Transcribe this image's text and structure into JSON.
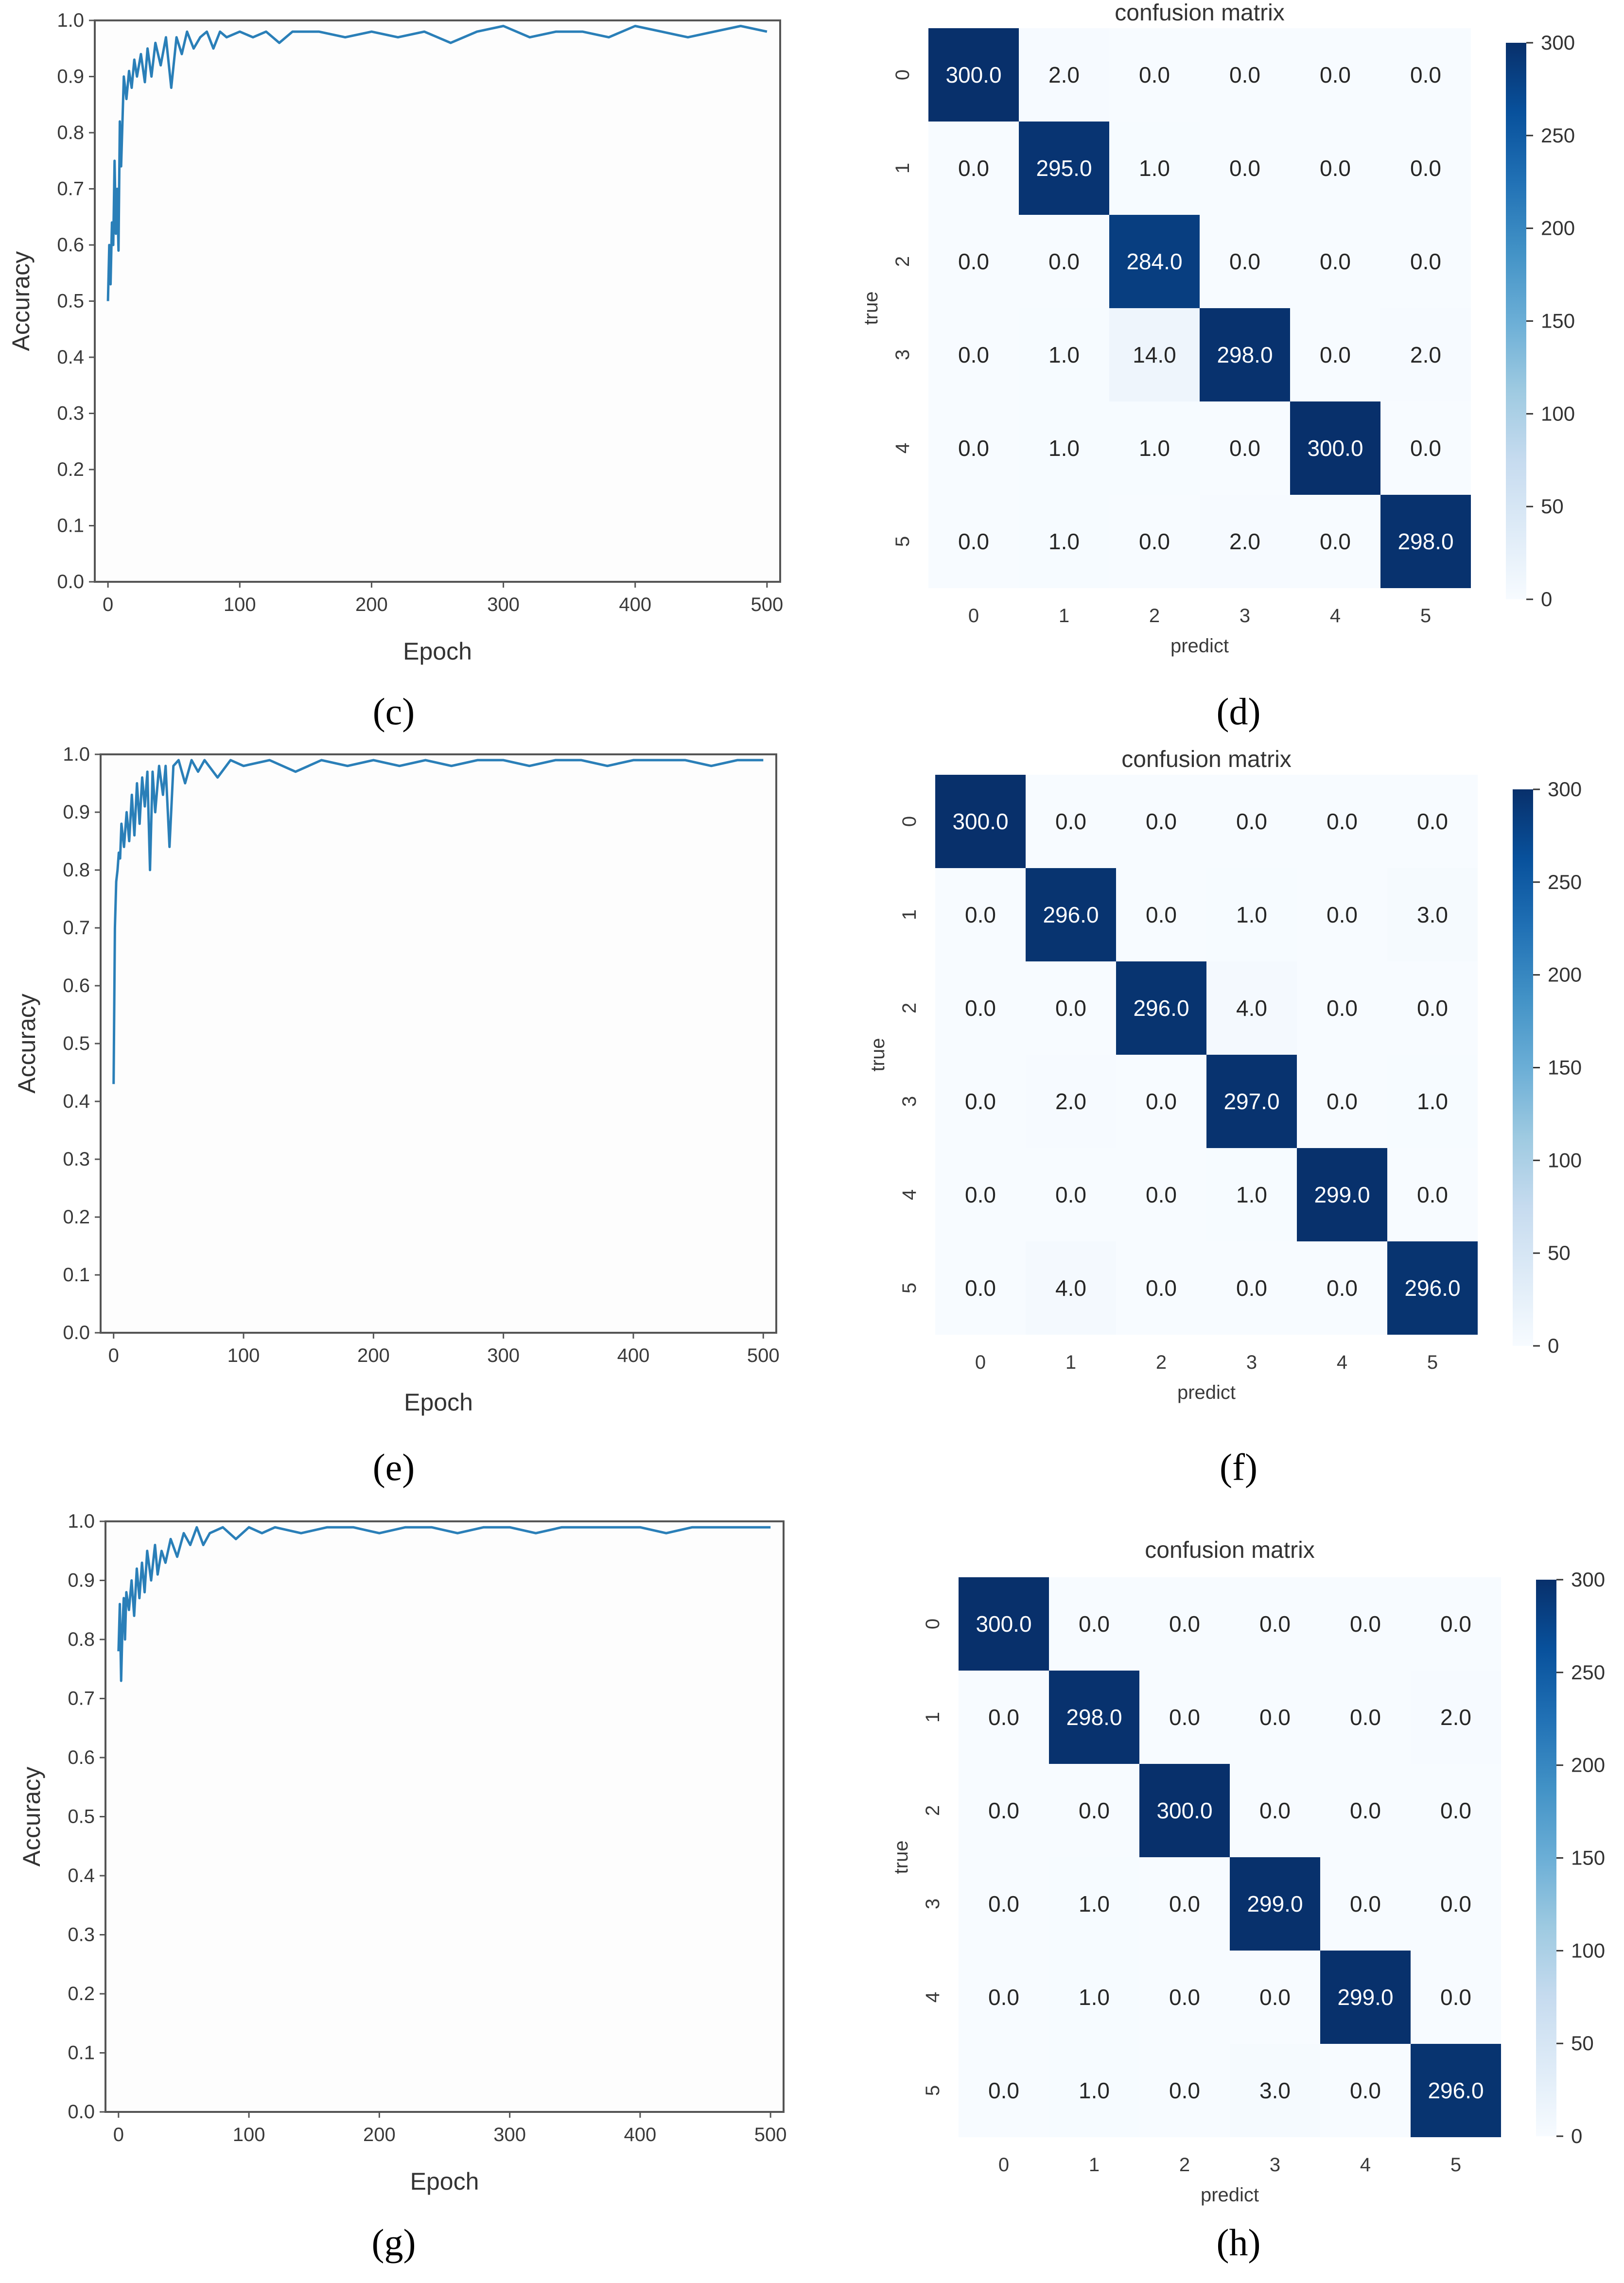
{
  "captions": [
    "(c)",
    "(d)",
    "(e)",
    "(f)",
    "(g)",
    "(h)"
  ],
  "colors": {
    "line": "#2a7fb8",
    "cmap_low": "#f7fbff",
    "cmap_high": "#08306b",
    "text_dark": "#262626",
    "text_light": "#ffffff"
  },
  "chart_data": [
    {
      "type": "line",
      "panel": "c",
      "title": "",
      "xlabel": "Epoch",
      "ylabel": "Accuracy",
      "xlim": [
        -10,
        510
      ],
      "ylim": [
        0.0,
        1.0
      ],
      "xticks": [
        0,
        100,
        200,
        300,
        400,
        500
      ],
      "yticks": [
        "0.0",
        "0.1",
        "0.2",
        "0.3",
        "0.4",
        "0.5",
        "0.6",
        "0.7",
        "0.8",
        "0.9",
        "1.0"
      ],
      "series": [
        {
          "name": "accuracy",
          "x": [
            0,
            1,
            2,
            3,
            4,
            5,
            6,
            7,
            8,
            9,
            10,
            12,
            14,
            16,
            18,
            20,
            22,
            25,
            28,
            30,
            33,
            36,
            40,
            44,
            48,
            52,
            56,
            60,
            65,
            70,
            75,
            80,
            85,
            90,
            100,
            110,
            120,
            130,
            140,
            160,
            180,
            200,
            220,
            240,
            260,
            280,
            300,
            320,
            340,
            360,
            380,
            400,
            420,
            440,
            460,
            480,
            500
          ],
          "y": [
            0.5,
            0.6,
            0.53,
            0.64,
            0.6,
            0.75,
            0.62,
            0.7,
            0.59,
            0.82,
            0.74,
            0.9,
            0.86,
            0.91,
            0.88,
            0.93,
            0.9,
            0.94,
            0.89,
            0.95,
            0.9,
            0.96,
            0.92,
            0.97,
            0.88,
            0.97,
            0.94,
            0.98,
            0.95,
            0.97,
            0.98,
            0.95,
            0.98,
            0.97,
            0.98,
            0.97,
            0.98,
            0.96,
            0.98,
            0.98,
            0.97,
            0.98,
            0.97,
            0.98,
            0.96,
            0.98,
            0.99,
            0.97,
            0.98,
            0.98,
            0.97,
            0.99,
            0.98,
            0.97,
            0.98,
            0.99,
            0.98
          ]
        }
      ]
    },
    {
      "type": "heatmap",
      "panel": "d",
      "title": "confusion matrix",
      "xlabel": "predict",
      "ylabel": "true",
      "labels": [
        "0",
        "1",
        "2",
        "3",
        "4",
        "5"
      ],
      "vmin": 0,
      "vmax": 300,
      "colorbar_ticks": [
        "0",
        "50",
        "100",
        "150",
        "200",
        "250",
        "300"
      ],
      "matrix": [
        [
          "300.0",
          "2.0",
          "0.0",
          "0.0",
          "0.0",
          "0.0"
        ],
        [
          "0.0",
          "295.0",
          "1.0",
          "0.0",
          "0.0",
          "0.0"
        ],
        [
          "0.0",
          "0.0",
          "284.0",
          "0.0",
          "0.0",
          "0.0"
        ],
        [
          "0.0",
          "1.0",
          "14.0",
          "298.0",
          "0.0",
          "2.0"
        ],
        [
          "0.0",
          "1.0",
          "1.0",
          "0.0",
          "300.0",
          "0.0"
        ],
        [
          "0.0",
          "1.0",
          "0.0",
          "2.0",
          "0.0",
          "298.0"
        ]
      ]
    },
    {
      "type": "line",
      "panel": "e",
      "title": "",
      "xlabel": "Epoch",
      "ylabel": "Accuracy",
      "xlim": [
        -10,
        510
      ],
      "ylim": [
        0.0,
        1.0
      ],
      "xticks": [
        0,
        100,
        200,
        300,
        400,
        500
      ],
      "yticks": [
        "0.0",
        "0.1",
        "0.2",
        "0.3",
        "0.4",
        "0.5",
        "0.6",
        "0.7",
        "0.8",
        "0.9",
        "1.0"
      ],
      "series": [
        {
          "name": "accuracy",
          "x": [
            0,
            1,
            2,
            3,
            4,
            5,
            6,
            8,
            10,
            12,
            14,
            16,
            18,
            20,
            22,
            24,
            26,
            28,
            30,
            32,
            35,
            38,
            40,
            43,
            46,
            50,
            55,
            60,
            65,
            70,
            80,
            90,
            100,
            120,
            140,
            160,
            180,
            200,
            220,
            240,
            260,
            280,
            300,
            320,
            340,
            360,
            380,
            400,
            420,
            440,
            460,
            480,
            500
          ],
          "y": [
            0.43,
            0.7,
            0.78,
            0.8,
            0.83,
            0.82,
            0.88,
            0.84,
            0.9,
            0.85,
            0.93,
            0.86,
            0.95,
            0.88,
            0.96,
            0.91,
            0.97,
            0.8,
            0.97,
            0.9,
            0.98,
            0.93,
            0.98,
            0.84,
            0.98,
            0.99,
            0.95,
            0.99,
            0.97,
            0.99,
            0.96,
            0.99,
            0.98,
            0.99,
            0.97,
            0.99,
            0.98,
            0.99,
            0.98,
            0.99,
            0.98,
            0.99,
            0.99,
            0.98,
            0.99,
            0.99,
            0.98,
            0.99,
            0.99,
            0.99,
            0.98,
            0.99,
            0.99
          ]
        }
      ]
    },
    {
      "type": "heatmap",
      "panel": "f",
      "title": "confusion matrix",
      "xlabel": "predict",
      "ylabel": "true",
      "labels": [
        "0",
        "1",
        "2",
        "3",
        "4",
        "5"
      ],
      "vmin": 0,
      "vmax": 300,
      "colorbar_ticks": [
        "0",
        "50",
        "100",
        "150",
        "200",
        "250",
        "300"
      ],
      "matrix": [
        [
          "300.0",
          "0.0",
          "0.0",
          "0.0",
          "0.0",
          "0.0"
        ],
        [
          "0.0",
          "296.0",
          "0.0",
          "1.0",
          "0.0",
          "3.0"
        ],
        [
          "0.0",
          "0.0",
          "296.0",
          "4.0",
          "0.0",
          "0.0"
        ],
        [
          "0.0",
          "2.0",
          "0.0",
          "297.0",
          "0.0",
          "1.0"
        ],
        [
          "0.0",
          "0.0",
          "0.0",
          "1.0",
          "299.0",
          "0.0"
        ],
        [
          "0.0",
          "4.0",
          "0.0",
          "0.0",
          "0.0",
          "296.0"
        ]
      ]
    },
    {
      "type": "line",
      "panel": "g",
      "title": "",
      "xlabel": "Epoch",
      "ylabel": "Accuracy",
      "xlim": [
        -10,
        510
      ],
      "ylim": [
        0.0,
        1.0
      ],
      "xticks": [
        0,
        100,
        200,
        300,
        400,
        500
      ],
      "yticks": [
        "0.0",
        "0.1",
        "0.2",
        "0.3",
        "0.4",
        "0.5",
        "0.6",
        "0.7",
        "0.8",
        "0.9",
        "1.0"
      ],
      "series": [
        {
          "name": "accuracy",
          "x": [
            0,
            1,
            2,
            3,
            4,
            5,
            6,
            8,
            10,
            12,
            14,
            16,
            18,
            20,
            22,
            25,
            28,
            30,
            33,
            36,
            40,
            45,
            50,
            55,
            60,
            65,
            70,
            80,
            90,
            100,
            110,
            120,
            140,
            160,
            180,
            200,
            220,
            240,
            260,
            280,
            300,
            320,
            340,
            360,
            380,
            400,
            420,
            440,
            460,
            480,
            500
          ],
          "y": [
            0.78,
            0.86,
            0.73,
            0.82,
            0.87,
            0.8,
            0.88,
            0.85,
            0.9,
            0.84,
            0.92,
            0.87,
            0.93,
            0.88,
            0.95,
            0.9,
            0.96,
            0.91,
            0.95,
            0.93,
            0.97,
            0.94,
            0.98,
            0.96,
            0.99,
            0.96,
            0.98,
            0.99,
            0.97,
            0.99,
            0.98,
            0.99,
            0.98,
            0.99,
            0.99,
            0.98,
            0.99,
            0.99,
            0.98,
            0.99,
            0.99,
            0.98,
            0.99,
            0.99,
            0.99,
            0.99,
            0.98,
            0.99,
            0.99,
            0.99,
            0.99
          ]
        }
      ]
    },
    {
      "type": "heatmap",
      "panel": "h",
      "title": "confusion matrix",
      "xlabel": "predict",
      "ylabel": "true",
      "labels": [
        "0",
        "1",
        "2",
        "3",
        "4",
        "5"
      ],
      "vmin": 0,
      "vmax": 300,
      "colorbar_ticks": [
        "0",
        "50",
        "100",
        "150",
        "200",
        "250",
        "300"
      ],
      "matrix": [
        [
          "300.0",
          "0.0",
          "0.0",
          "0.0",
          "0.0",
          "0.0"
        ],
        [
          "0.0",
          "298.0",
          "0.0",
          "0.0",
          "0.0",
          "2.0"
        ],
        [
          "0.0",
          "0.0",
          "300.0",
          "0.0",
          "0.0",
          "0.0"
        ],
        [
          "0.0",
          "1.0",
          "0.0",
          "299.0",
          "0.0",
          "0.0"
        ],
        [
          "0.0",
          "1.0",
          "0.0",
          "0.0",
          "299.0",
          "0.0"
        ],
        [
          "0.0",
          "1.0",
          "0.0",
          "3.0",
          "0.0",
          "296.0"
        ]
      ]
    }
  ]
}
